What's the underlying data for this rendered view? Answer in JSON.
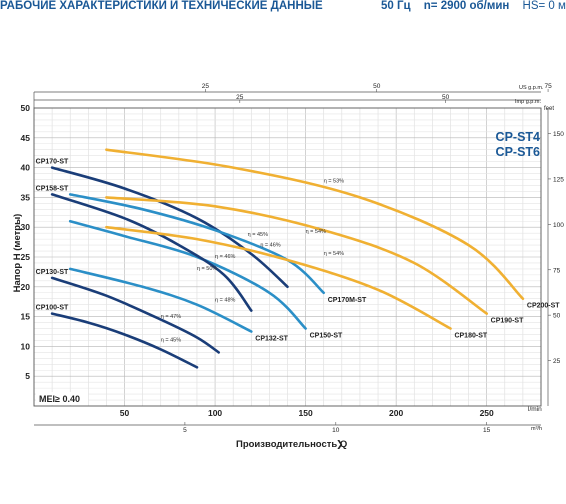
{
  "header": {
    "title": "РАБОЧИЕ ХАРАКТЕРИСТИКИ И ТЕХНИЧЕСКИЕ ДАННЫЕ",
    "frequency": "50 Гц",
    "speed": "n= 2900 об/мин",
    "hs": "HS= 0 м"
  },
  "chart_data": {
    "type": "line",
    "brand_models": [
      "CP-ST4",
      "CP-ST6"
    ],
    "xlabel": "Производительность Q",
    "ylabel": "Напор H (метры)",
    "y2label": "feet",
    "x_unit": "l/min",
    "x2_unit": "m³/h",
    "top1_unit": "US g.p.m.",
    "top2_unit": "Imp g.p.m.",
    "mei_label": "MEI≥ 0.40",
    "xlim": [
      0,
      280
    ],
    "ylim": [
      0,
      50
    ],
    "x_ticks": [
      50,
      100,
      150,
      200,
      250
    ],
    "x_tick_labels": [
      "50",
      "100",
      "150",
      "200",
      "250"
    ],
    "y_ticks": [
      5,
      10,
      15,
      20,
      25,
      30,
      35,
      40,
      45,
      50
    ],
    "y_tick_labels": [
      "5",
      "10",
      "15",
      "20",
      "25",
      "30",
      "35",
      "40",
      "45",
      "50"
    ],
    "m3h_ticks": [
      5,
      10,
      15
    ],
    "m3h_tick_labels": [
      "5",
      "10",
      "15"
    ],
    "usgpm_ticks": [
      25,
      50,
      75
    ],
    "usgpm_tick_labels": [
      "25",
      "50",
      "75"
    ],
    "impgpm_ticks": [
      25,
      50
    ],
    "impgpm_tick_labels": [
      "25",
      "50"
    ],
    "feet_ticks": [
      25,
      50,
      75,
      100,
      125,
      150
    ],
    "feet_tick_labels": [
      "25",
      "50",
      "75",
      "100",
      "125",
      "150"
    ],
    "grid": true,
    "series": [
      {
        "name": "CP100-ST",
        "color": "#1a3d78",
        "points": [
          [
            10,
            15.5
          ],
          [
            30,
            14
          ],
          [
            50,
            12
          ],
          [
            70,
            9.5
          ],
          [
            90,
            6.5
          ]
        ]
      },
      {
        "name": "CP130-ST",
        "color": "#1a3d78",
        "points": [
          [
            10,
            21.5
          ],
          [
            40,
            18.5
          ],
          [
            70,
            14.5
          ],
          [
            90,
            11.5
          ],
          [
            102,
            9
          ]
        ]
      },
      {
        "name": "CP132-ST",
        "color": "#2b8fc7",
        "points": [
          [
            20,
            23
          ],
          [
            60,
            20
          ],
          [
            90,
            17
          ],
          [
            120,
            12.5
          ]
        ]
      },
      {
        "name": "CP150-ST",
        "color": "#2b8fc7",
        "points": [
          [
            20,
            31
          ],
          [
            50,
            28.5
          ],
          [
            90,
            25
          ],
          [
            130,
            19
          ],
          [
            150,
            13
          ]
        ]
      },
      {
        "name": "CP158-ST",
        "color": "#1a3d78",
        "points": [
          [
            10,
            35.5
          ],
          [
            50,
            31.5
          ],
          [
            80,
            27
          ],
          [
            105,
            22
          ],
          [
            120,
            16
          ]
        ]
      },
      {
        "name": "CP170-ST",
        "color": "#1a3d78",
        "points": [
          [
            10,
            40
          ],
          [
            50,
            36.5
          ],
          [
            90,
            31.5
          ],
          [
            120,
            25.5
          ],
          [
            140,
            20
          ]
        ]
      },
      {
        "name": "CP170M-ST",
        "color": "#2b8fc7",
        "points": [
          [
            20,
            35.5
          ],
          [
            60,
            33
          ],
          [
            100,
            29.5
          ],
          [
            140,
            24.5
          ],
          [
            160,
            19
          ]
        ]
      },
      {
        "name": "CP180-ST",
        "color": "#f0b032",
        "points": [
          [
            40,
            30
          ],
          [
            90,
            28
          ],
          [
            140,
            24.5
          ],
          [
            190,
            19.5
          ],
          [
            230,
            13
          ]
        ]
      },
      {
        "name": "CP190-ST",
        "color": "#f0b032",
        "points": [
          [
            40,
            35
          ],
          [
            100,
            33.5
          ],
          [
            160,
            29.5
          ],
          [
            210,
            24
          ],
          [
            250,
            15.5
          ]
        ]
      },
      {
        "name": "CP200-ST",
        "color": "#f0b032",
        "points": [
          [
            40,
            43
          ],
          [
            110,
            40
          ],
          [
            180,
            35
          ],
          [
            240,
            27
          ],
          [
            270,
            18
          ]
        ]
      }
    ],
    "efficiency_labels": [
      {
        "text": "η = 53%",
        "x": 160,
        "y": 37.5
      },
      {
        "text": "η = 54%",
        "x": 150,
        "y": 29
      },
      {
        "text": "η = 54%",
        "x": 160,
        "y": 25.3
      },
      {
        "text": "η = 45%",
        "x": 118,
        "y": 28.5
      },
      {
        "text": "η = 46%",
        "x": 125,
        "y": 26.8
      },
      {
        "text": "η = 46%",
        "x": 100,
        "y": 24.8
      },
      {
        "text": "η = 50%",
        "x": 90,
        "y": 22.8
      },
      {
        "text": "η = 48%",
        "x": 100,
        "y": 17.5
      },
      {
        "text": "η = 47%",
        "x": 70,
        "y": 14.8
      },
      {
        "text": "η = 45%",
        "x": 70,
        "y": 10.8
      }
    ]
  }
}
